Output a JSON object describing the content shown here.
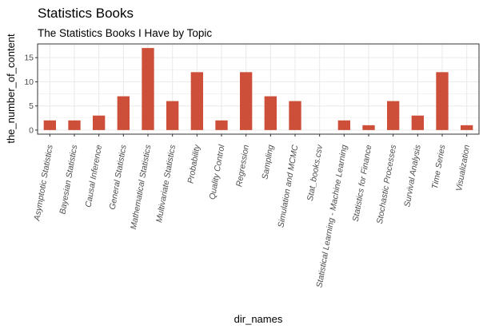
{
  "chart_data": {
    "type": "bar",
    "title": "Statistics Books",
    "subtitle": "The Statistics Books I Have by Topic",
    "xlabel": "dir_names",
    "ylabel": "the_number_of_content",
    "categories": [
      "Asymptotic Statistics",
      "Bayesian Statistics",
      "Causal Inference",
      "General Statistics",
      "Mathematical Statistics",
      "Multivariate Statistics",
      "Probability",
      "Quality Control",
      "Regression",
      "Sampling",
      "Simulation and MCMC",
      "Stat_books.csv",
      "Statistical Learning - Machine Learning",
      "Statistics for Finance",
      "Stochastic Processes",
      "Survival Analysis",
      "Time Series",
      "Visualization"
    ],
    "values": [
      2,
      2,
      3,
      7,
      17,
      6,
      12,
      2,
      12,
      7,
      6,
      0,
      2,
      1,
      6,
      3,
      12,
      1
    ],
    "ylim": [
      -0.85,
      17.85
    ],
    "yticks": [
      0,
      5,
      10,
      15
    ],
    "grid": true,
    "bar_color": "#cd4f39",
    "panel_border_color": "#333333",
    "grid_color": "#ebebeb"
  }
}
